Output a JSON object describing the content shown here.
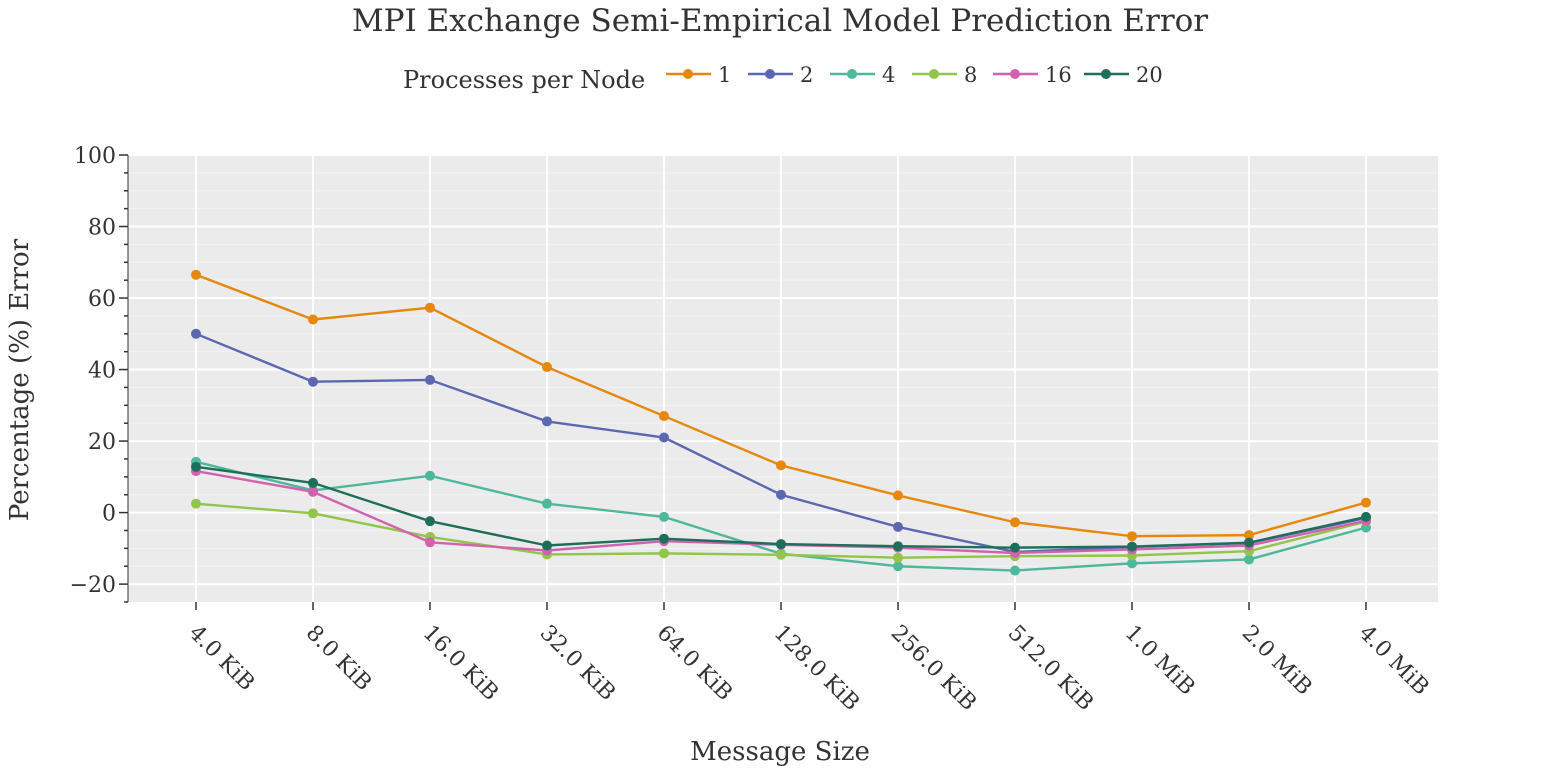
{
  "chart_data": {
    "type": "line",
    "title": "MPI Exchange Semi-Empirical Model Prediction Error",
    "xlabel": "Message Size",
    "ylabel": "Percentage (%) Error",
    "legend_title": "Processes per Node",
    "legend_position": "top-center",
    "grid": true,
    "ylim": [
      -25,
      100
    ],
    "yticks": [
      -20,
      0,
      20,
      40,
      60,
      80,
      100
    ],
    "ytick_labels": [
      "−20",
      "0",
      "20",
      "40",
      "60",
      "80",
      "100"
    ],
    "categories": [
      "4.0 KiB",
      "8.0 KiB",
      "16.0 KiB",
      "32.0 KiB",
      "64.0 KiB",
      "128.0 KiB",
      "256.0 KiB",
      "512.0 KiB",
      "1.0 MiB",
      "2.0 MiB",
      "4.0 MiB"
    ],
    "series": [
      {
        "name": "1",
        "color": "#E6870E",
        "values": [
          66.5,
          54.0,
          57.3,
          40.7,
          27.0,
          13.2,
          4.8,
          -2.7,
          -6.6,
          -6.3,
          2.8
        ]
      },
      {
        "name": "2",
        "color": "#5B68B0",
        "values": [
          50.0,
          36.6,
          37.1,
          25.5,
          21.0,
          5.0,
          -4.0,
          -11.0,
          -9.6,
          -8.5,
          -1.5
        ]
      },
      {
        "name": "4",
        "color": "#4DB89B",
        "values": [
          14.2,
          6.2,
          10.3,
          2.5,
          -1.2,
          -11.5,
          -15.0,
          -16.2,
          -14.2,
          -13.1,
          -4.2
        ]
      },
      {
        "name": "8",
        "color": "#92C54A",
        "values": [
          2.5,
          -0.2,
          -6.8,
          -11.7,
          -11.4,
          -11.8,
          -12.6,
          -12.2,
          -12.0,
          -10.8,
          -2.5
        ]
      },
      {
        "name": "16",
        "color": "#D262AE",
        "values": [
          11.6,
          5.8,
          -8.3,
          -10.6,
          -8.0,
          -9.0,
          -9.8,
          -11.3,
          -10.3,
          -9.2,
          -2.3
        ]
      },
      {
        "name": "20",
        "color": "#1E6E5C",
        "values": [
          12.8,
          8.3,
          -2.4,
          -9.2,
          -7.3,
          -8.8,
          -9.4,
          -9.8,
          -9.5,
          -8.4,
          -1.2
        ]
      }
    ]
  }
}
